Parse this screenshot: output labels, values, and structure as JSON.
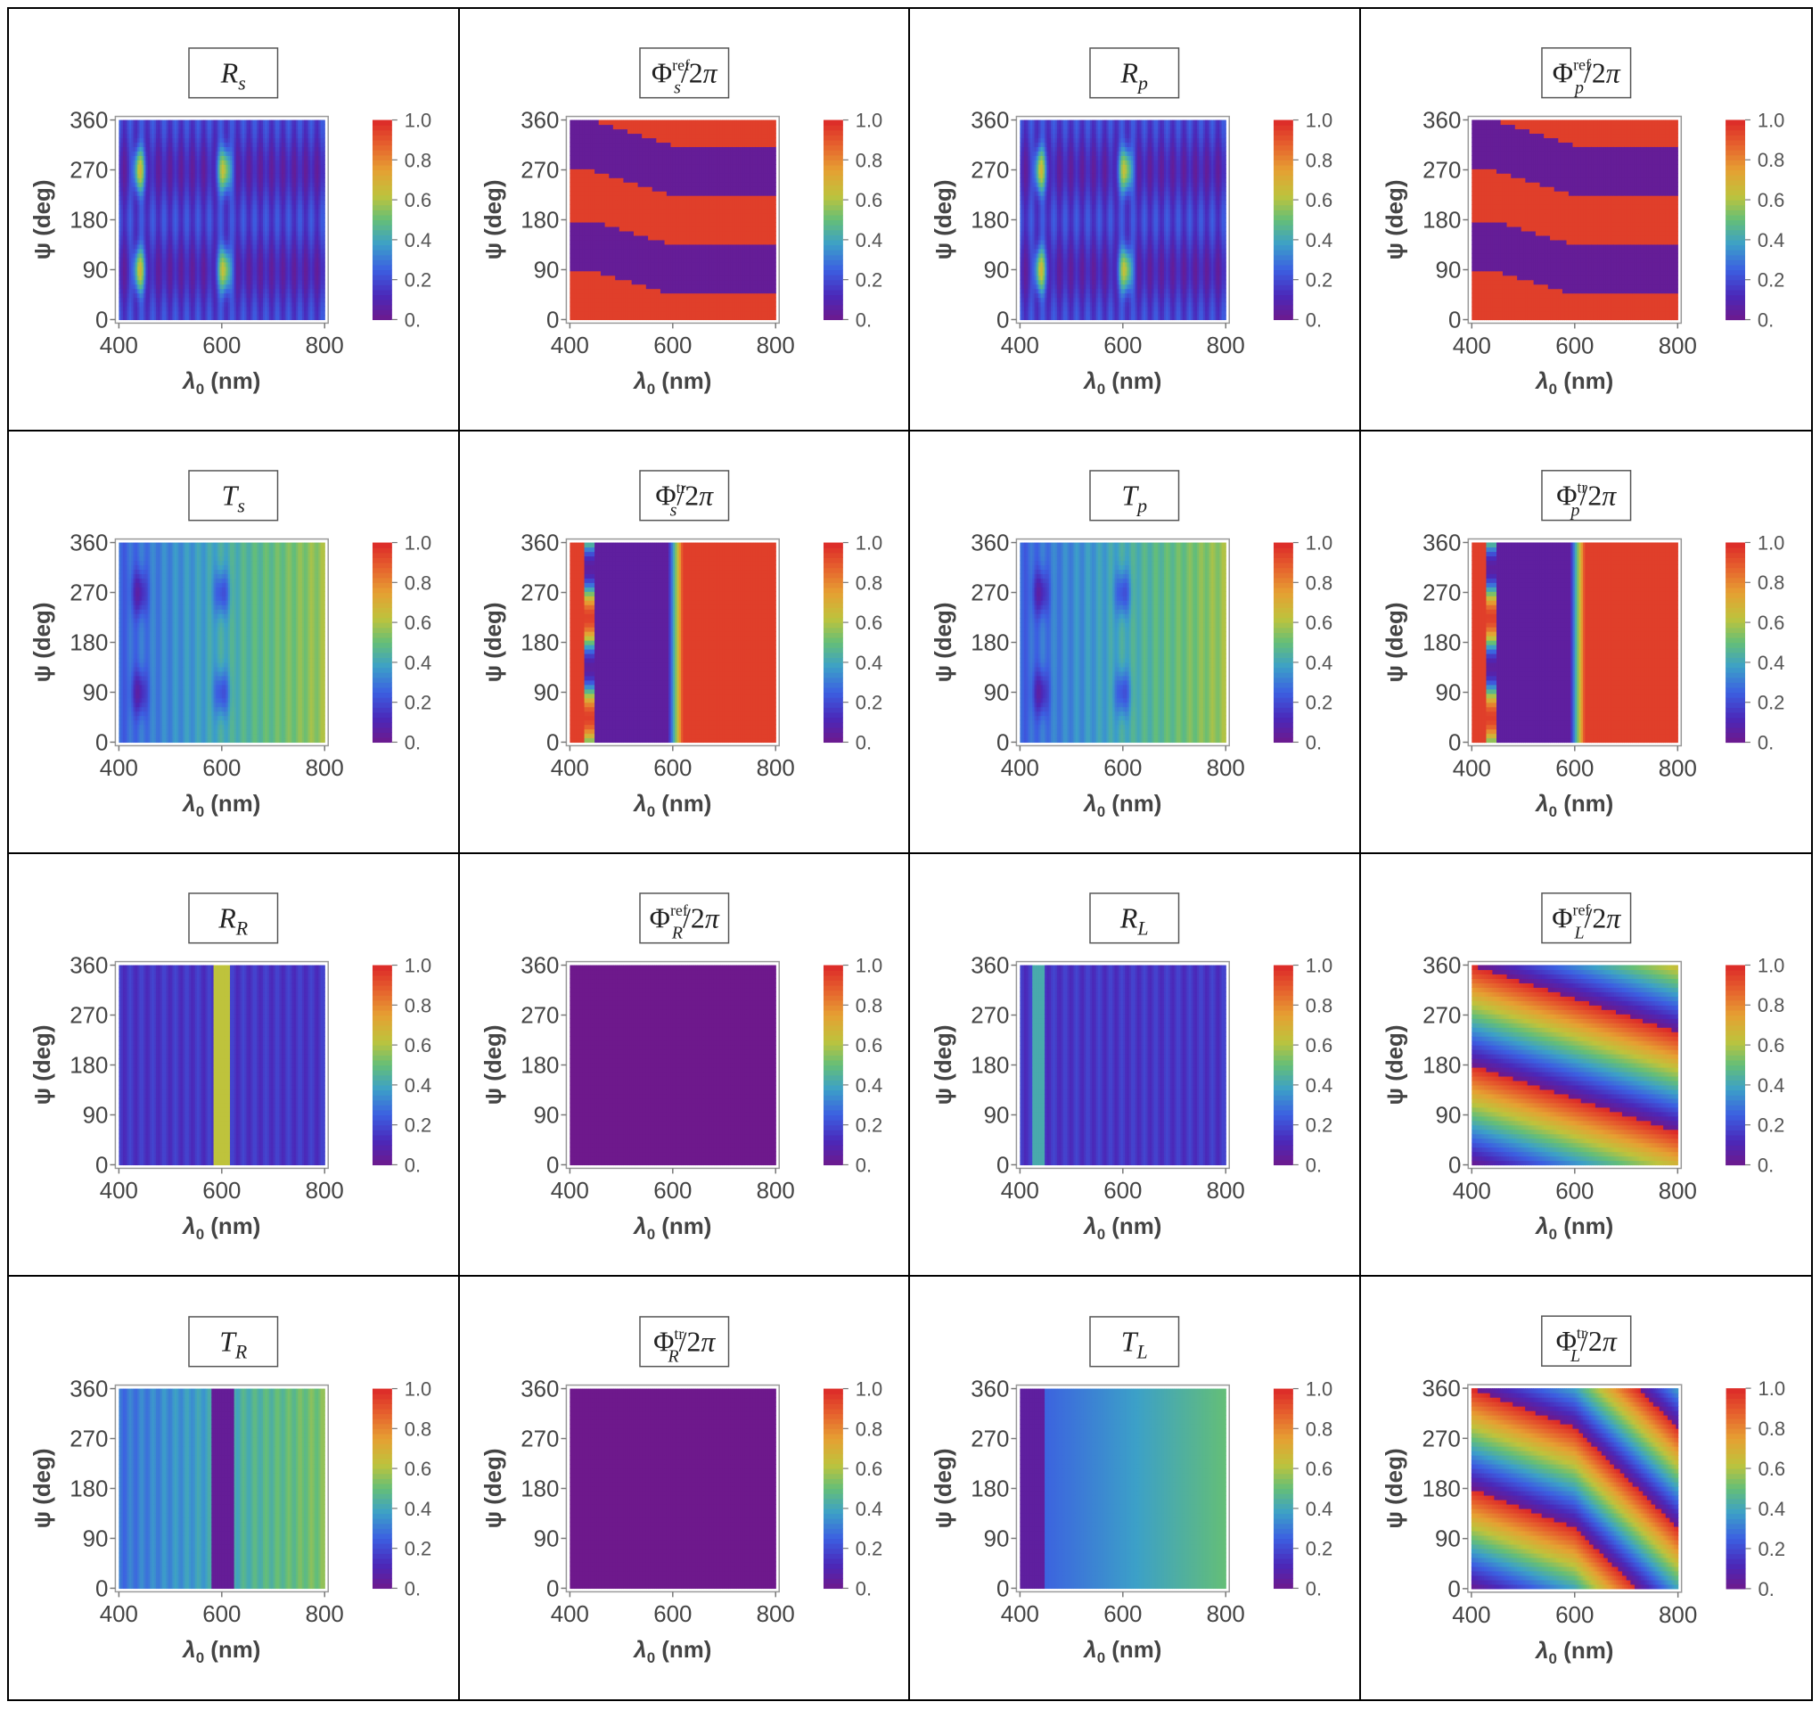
{
  "chart_data": [
    {
      "type": "heatmap",
      "title": {
        "base": "R",
        "sub": "s",
        "sup": "",
        "suffix": ""
      },
      "pattern": "refl_amp",
      "colorbar": {
        "ticks": [
          "0.",
          "0.2",
          "0.4",
          "0.6",
          "0.8",
          "1.0"
        ]
      },
      "xlabel": {
        "base": "λ",
        "sub": "0",
        "rest": " (nm)"
      },
      "ylabel": "ψ (deg)",
      "xticks": [
        "400",
        "600",
        "800"
      ],
      "yticks": [
        "0",
        "90",
        "180",
        "270",
        "360"
      ],
      "xlim": [
        400,
        800
      ],
      "ylim": [
        0,
        360
      ],
      "zlim": [
        0,
        1
      ]
    },
    {
      "type": "heatmap",
      "title": {
        "base": "Φ",
        "sub": "s",
        "sup": "ref",
        "suffix": "/2π"
      },
      "pattern": "refl_phase",
      "colorbar": {
        "ticks": [
          "0.",
          "0.2",
          "0.4",
          "0.6",
          "0.8",
          "1.0"
        ]
      },
      "xlabel": {
        "base": "λ",
        "sub": "0",
        "rest": " (nm)"
      },
      "ylabel": "ψ (deg)",
      "xticks": [
        "400",
        "600",
        "800"
      ],
      "yticks": [
        "0",
        "90",
        "180",
        "270",
        "360"
      ],
      "xlim": [
        400,
        800
      ],
      "ylim": [
        0,
        360
      ],
      "zlim": [
        0,
        1
      ]
    },
    {
      "type": "heatmap",
      "title": {
        "base": "R",
        "sub": "p",
        "sup": "",
        "suffix": ""
      },
      "pattern": "refl_amp",
      "colorbar": {
        "ticks": [
          "0.",
          "0.2",
          "0.4",
          "0.6",
          "0.8",
          "1.0"
        ]
      },
      "xlabel": {
        "base": "λ",
        "sub": "0",
        "rest": " (nm)"
      },
      "ylabel": "ψ (deg)",
      "xticks": [
        "400",
        "600",
        "800"
      ],
      "yticks": [
        "0",
        "90",
        "180",
        "270",
        "360"
      ],
      "xlim": [
        400,
        800
      ],
      "ylim": [
        0,
        360
      ],
      "zlim": [
        0,
        1
      ]
    },
    {
      "type": "heatmap",
      "title": {
        "base": "Φ",
        "sub": "p",
        "sup": "ref",
        "suffix": "/2π"
      },
      "pattern": "refl_phase",
      "colorbar": {
        "ticks": [
          "0.",
          "0.2",
          "0.4",
          "0.6",
          "0.8",
          "1.0"
        ]
      },
      "xlabel": {
        "base": "λ",
        "sub": "0",
        "rest": " (nm)"
      },
      "ylabel": "ψ (deg)",
      "xticks": [
        "400",
        "600",
        "800"
      ],
      "yticks": [
        "0",
        "90",
        "180",
        "270",
        "360"
      ],
      "xlim": [
        400,
        800
      ],
      "ylim": [
        0,
        360
      ],
      "zlim": [
        0,
        1
      ]
    },
    {
      "type": "heatmap",
      "title": {
        "base": "T",
        "sub": "s",
        "sup": "",
        "suffix": ""
      },
      "pattern": "trans_amp",
      "colorbar": {
        "ticks": [
          "0.",
          "0.2",
          "0.4",
          "0.6",
          "0.8",
          "1.0"
        ]
      },
      "xlabel": {
        "base": "λ",
        "sub": "0",
        "rest": " (nm)"
      },
      "ylabel": "ψ (deg)",
      "xticks": [
        "400",
        "600",
        "800"
      ],
      "yticks": [
        "0",
        "90",
        "180",
        "270",
        "360"
      ],
      "xlim": [
        400,
        800
      ],
      "ylim": [
        0,
        360
      ],
      "zlim": [
        0,
        1
      ]
    },
    {
      "type": "heatmap",
      "title": {
        "base": "Φ",
        "sub": "s",
        "sup": "tr",
        "suffix": "/2π"
      },
      "pattern": "trans_phase",
      "colorbar": {
        "ticks": [
          "0.",
          "0.2",
          "0.4",
          "0.6",
          "0.8",
          "1.0"
        ]
      },
      "xlabel": {
        "base": "λ",
        "sub": "0",
        "rest": " (nm)"
      },
      "ylabel": "ψ (deg)",
      "xticks": [
        "400",
        "600",
        "800"
      ],
      "yticks": [
        "0",
        "90",
        "180",
        "270",
        "360"
      ],
      "xlim": [
        400,
        800
      ],
      "ylim": [
        0,
        360
      ],
      "zlim": [
        0,
        1
      ]
    },
    {
      "type": "heatmap",
      "title": {
        "base": "T",
        "sub": "p",
        "sup": "",
        "suffix": ""
      },
      "pattern": "trans_amp",
      "colorbar": {
        "ticks": [
          "0.",
          "0.2",
          "0.4",
          "0.6",
          "0.8",
          "1.0"
        ]
      },
      "xlabel": {
        "base": "λ",
        "sub": "0",
        "rest": " (nm)"
      },
      "ylabel": "ψ (deg)",
      "xticks": [
        "400",
        "600",
        "800"
      ],
      "yticks": [
        "0",
        "90",
        "180",
        "270",
        "360"
      ],
      "xlim": [
        400,
        800
      ],
      "ylim": [
        0,
        360
      ],
      "zlim": [
        0,
        1
      ]
    },
    {
      "type": "heatmap",
      "title": {
        "base": "Φ",
        "sub": "p",
        "sup": "tr",
        "suffix": "/2π"
      },
      "pattern": "trans_phase",
      "colorbar": {
        "ticks": [
          "0.",
          "0.2",
          "0.4",
          "0.6",
          "0.8",
          "1.0"
        ]
      },
      "xlabel": {
        "base": "λ",
        "sub": "0",
        "rest": " (nm)"
      },
      "ylabel": "ψ (deg)",
      "xticks": [
        "400",
        "600",
        "800"
      ],
      "yticks": [
        "0",
        "90",
        "180",
        "270",
        "360"
      ],
      "xlim": [
        400,
        800
      ],
      "ylim": [
        0,
        360
      ],
      "zlim": [
        0,
        1
      ]
    },
    {
      "type": "heatmap",
      "title": {
        "base": "R",
        "sub": "R",
        "sup": "",
        "suffix": ""
      },
      "pattern": "circ_RR",
      "colorbar": {
        "ticks": [
          "0.",
          "0.2",
          "0.4",
          "0.6",
          "0.8",
          "1.0"
        ]
      },
      "xlabel": {
        "base": "λ",
        "sub": "0",
        "rest": " (nm)"
      },
      "ylabel": "ψ (deg)",
      "xticks": [
        "400",
        "600",
        "800"
      ],
      "yticks": [
        "0",
        "90",
        "180",
        "270",
        "360"
      ],
      "xlim": [
        400,
        800
      ],
      "ylim": [
        0,
        360
      ],
      "zlim": [
        0,
        1
      ]
    },
    {
      "type": "heatmap",
      "title": {
        "base": "Φ",
        "sub": "R",
        "sup": "ref",
        "suffix": "/2π"
      },
      "pattern": "uniform",
      "colorbar": {
        "ticks": [
          "0.",
          "0.2",
          "0.4",
          "0.6",
          "0.8",
          "1.0"
        ]
      },
      "xlabel": {
        "base": "λ",
        "sub": "0",
        "rest": " (nm)"
      },
      "ylabel": "ψ (deg)",
      "xticks": [
        "400",
        "600",
        "800"
      ],
      "yticks": [
        "0",
        "90",
        "180",
        "270",
        "360"
      ],
      "xlim": [
        400,
        800
      ],
      "ylim": [
        0,
        360
      ],
      "zlim": [
        0,
        1
      ]
    },
    {
      "type": "heatmap",
      "title": {
        "base": "R",
        "sub": "L",
        "sup": "",
        "suffix": ""
      },
      "pattern": "circ_RL",
      "colorbar": {
        "ticks": [
          "0.",
          "0.2",
          "0.4",
          "0.6",
          "0.8",
          "1.0"
        ]
      },
      "xlabel": {
        "base": "λ",
        "sub": "0",
        "rest": " (nm)"
      },
      "ylabel": "ψ (deg)",
      "xticks": [
        "400",
        "600",
        "800"
      ],
      "yticks": [
        "0",
        "90",
        "180",
        "270",
        "360"
      ],
      "xlim": [
        400,
        800
      ],
      "ylim": [
        0,
        360
      ],
      "zlim": [
        0,
        1
      ]
    },
    {
      "type": "heatmap",
      "title": {
        "base": "Φ",
        "sub": "L",
        "sup": "ref",
        "suffix": "/2π"
      },
      "pattern": "phase_L_ref",
      "colorbar": {
        "ticks": [
          "0.",
          "0.2",
          "0.4",
          "0.6",
          "0.8",
          "1.0"
        ]
      },
      "xlabel": {
        "base": "λ",
        "sub": "0",
        "rest": " (nm)"
      },
      "ylabel": "ψ (deg)",
      "xticks": [
        "400",
        "600",
        "800"
      ],
      "yticks": [
        "0",
        "90",
        "180",
        "270",
        "360"
      ],
      "xlim": [
        400,
        800
      ],
      "ylim": [
        0,
        360
      ],
      "zlim": [
        0,
        1
      ]
    },
    {
      "type": "heatmap",
      "title": {
        "base": "T",
        "sub": "R",
        "sup": "",
        "suffix": ""
      },
      "pattern": "circ_TR",
      "colorbar": {
        "ticks": [
          "0.",
          "0.2",
          "0.4",
          "0.6",
          "0.8",
          "1.0"
        ]
      },
      "xlabel": {
        "base": "λ",
        "sub": "0",
        "rest": " (nm)"
      },
      "ylabel": "ψ (deg)",
      "xticks": [
        "400",
        "600",
        "800"
      ],
      "yticks": [
        "0",
        "90",
        "180",
        "270",
        "360"
      ],
      "xlim": [
        400,
        800
      ],
      "ylim": [
        0,
        360
      ],
      "zlim": [
        0,
        1
      ]
    },
    {
      "type": "heatmap",
      "title": {
        "base": "Φ",
        "sub": "R",
        "sup": "tr",
        "suffix": "/2π"
      },
      "pattern": "uniform",
      "colorbar": {
        "ticks": [
          "0.",
          "0.2",
          "0.4",
          "0.6",
          "0.8",
          "1.0"
        ]
      },
      "xlabel": {
        "base": "λ",
        "sub": "0",
        "rest": " (nm)"
      },
      "ylabel": "ψ (deg)",
      "xticks": [
        "400",
        "600",
        "800"
      ],
      "yticks": [
        "0",
        "90",
        "180",
        "270",
        "360"
      ],
      "xlim": [
        400,
        800
      ],
      "ylim": [
        0,
        360
      ],
      "zlim": [
        0,
        1
      ]
    },
    {
      "type": "heatmap",
      "title": {
        "base": "T",
        "sub": "L",
        "sup": "",
        "suffix": ""
      },
      "pattern": "circ_TL",
      "colorbar": {
        "ticks": [
          "0.",
          "0.2",
          "0.4",
          "0.6",
          "0.8",
          "1.0"
        ]
      },
      "xlabel": {
        "base": "λ",
        "sub": "0",
        "rest": " (nm)"
      },
      "ylabel": "ψ (deg)",
      "xticks": [
        "400",
        "600",
        "800"
      ],
      "yticks": [
        "0",
        "90",
        "180",
        "270",
        "360"
      ],
      "xlim": [
        400,
        800
      ],
      "ylim": [
        0,
        360
      ],
      "zlim": [
        0,
        1
      ]
    },
    {
      "type": "heatmap",
      "title": {
        "base": "Φ",
        "sub": "L",
        "sup": "tr",
        "suffix": "/2π"
      },
      "pattern": "phase_L_tr",
      "colorbar": {
        "ticks": [
          "0.",
          "0.2",
          "0.4",
          "0.6",
          "0.8",
          "1.0"
        ]
      },
      "xlabel": {
        "base": "λ",
        "sub": "0",
        "rest": " (nm)"
      },
      "ylabel": "ψ (deg)",
      "xticks": [
        "400",
        "600",
        "800"
      ],
      "yticks": [
        "0",
        "90",
        "180",
        "270",
        "360"
      ],
      "xlim": [
        400,
        800
      ],
      "ylim": [
        0,
        360
      ],
      "zlim": [
        0,
        1
      ]
    }
  ]
}
